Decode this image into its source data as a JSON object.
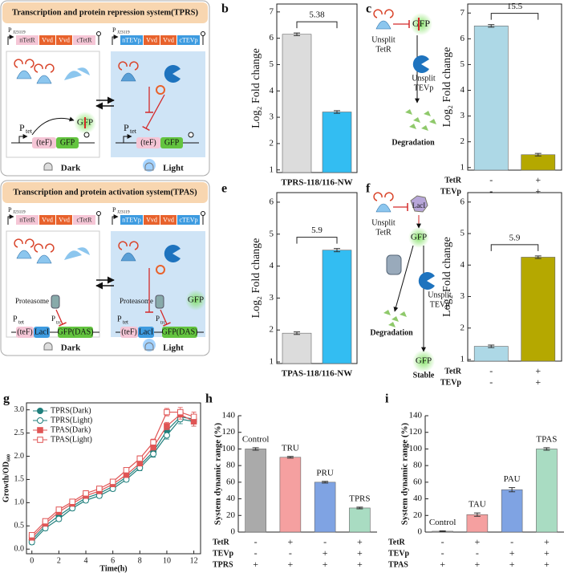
{
  "panel_labels": [
    "a",
    "b",
    "c",
    "d",
    "e",
    "f",
    "g",
    "h",
    "i"
  ],
  "diagram_a": {
    "title": "Transcription and protein repression system(TPRS)",
    "promoter": "P",
    "promoter_sub": "J23119",
    "left_parts": [
      "nTetR",
      "Vvd",
      "Vvd",
      "cTetR"
    ],
    "right_parts": [
      "nTEVp",
      "Vvd",
      "Vvd",
      "cTEVp"
    ],
    "ptet": "P",
    "ptet_sub": "tet",
    "tef": "(teF)",
    "gfp": "GFP",
    "reporter": "GFP",
    "dark": "Dark",
    "light": "Light"
  },
  "diagram_c": {
    "tetr": [
      "Unsplit",
      "TetR"
    ],
    "gfp": "GFP",
    "tevp": [
      "Unsplit",
      "TEVp"
    ],
    "result": "Degradation"
  },
  "diagram_d": {
    "title": "Transcription and protein activation system(TPAS)",
    "promoter": "P",
    "promoter_sub": "J23119",
    "left_parts": [
      "nTetR",
      "Vvd",
      "Vvd",
      "cTetR"
    ],
    "right_parts": [
      "nTEVp",
      "Vvd",
      "Vvd",
      "cTEVp"
    ],
    "ptet": "P",
    "ptet_sub": "tet",
    "ptrc": "P",
    "ptrc_sub": "trc",
    "tef": "(teF)",
    "laci": "LacI",
    "gfp_das": "GFP(DAS)",
    "proteasome": "Proteasome",
    "gfp": "GFP",
    "dark": "Dark",
    "light": "Light"
  },
  "diagram_f": {
    "tetr": [
      "Unsplit",
      "TetR"
    ],
    "laci": "LacI",
    "gfp": "GFP",
    "tevp": [
      "Unsplit",
      "TEVp"
    ],
    "degradation": "Degradation",
    "stable_gfp": "GFP",
    "stable": "Stable"
  },
  "chart_data": [
    {
      "type": "bar",
      "ylabel": "Log₂ Fold change",
      "xlabel": "TPRS-118/116-NW",
      "categories": [
        null,
        null
      ],
      "values": [
        6.15,
        3.2
      ],
      "errors": [
        0.05,
        0.05
      ],
      "colors": [
        "#dcdcdc",
        "#33bdf2"
      ],
      "ylim": [
        0.9,
        7.3
      ],
      "yticks": [
        1,
        2,
        3,
        4,
        5,
        6,
        7
      ],
      "annotation": "5.38",
      "frame": "box"
    },
    {
      "type": "bar",
      "ylabel": "Log₂ Fold change",
      "categories": [
        null,
        null
      ],
      "values": [
        6.5,
        1.5
      ],
      "errors": [
        0.05,
        0.05
      ],
      "colors": [
        "#add8e6",
        "#b5a800"
      ],
      "ylim": [
        0.9,
        7.35
      ],
      "yticks": [
        1,
        2,
        3,
        4,
        5,
        6,
        7
      ],
      "annotation": "15.5",
      "frame": "box",
      "rows": [
        {
          "name": "TetR",
          "values": [
            "-",
            "+"
          ]
        },
        {
          "name": "TEVp",
          "values": [
            "-",
            "+"
          ]
        }
      ]
    },
    {
      "type": "bar",
      "ylabel": "Log₂ Fold change",
      "xlabel": "TPAS-118/116-NW",
      "categories": [
        null,
        null
      ],
      "values": [
        1.9,
        4.5
      ],
      "errors": [
        0.04,
        0.05
      ],
      "colors": [
        "#dcdcdc",
        "#33bdf2"
      ],
      "ylim": [
        0.95,
        6.3
      ],
      "yticks": [
        1,
        2,
        3,
        4,
        5,
        6
      ],
      "annotation": "5.9",
      "frame": "box"
    },
    {
      "type": "bar",
      "ylabel": "Log₂ Fold change",
      "categories": [
        null,
        null
      ],
      "values": [
        1.42,
        4.25
      ],
      "errors": [
        0.04,
        0.04
      ],
      "colors": [
        "#add8e6",
        "#b5a800"
      ],
      "ylim": [
        0.95,
        6.3
      ],
      "yticks": [
        1,
        2,
        3,
        4,
        5,
        6
      ],
      "annotation": "5.9",
      "frame": "box",
      "rows": [
        {
          "name": "TetR",
          "values": [
            "-",
            "+"
          ]
        },
        {
          "name": "TEVp",
          "values": [
            "-",
            "+"
          ]
        }
      ]
    },
    {
      "type": "line",
      "xlabel": "Time(h)",
      "ylabel": "Growth/OD₆₀₀",
      "legend": "upper left",
      "x": [
        0,
        1,
        2,
        3,
        4,
        5,
        6,
        7,
        8,
        9,
        10,
        11,
        12
      ],
      "series": [
        {
          "name": "TPRS(Dark)",
          "color": "#1f7f7c",
          "marker": "circle",
          "filled": true,
          "values": [
            0.2,
            0.5,
            0.72,
            0.92,
            1.1,
            1.2,
            1.35,
            1.55,
            1.8,
            2.1,
            2.55,
            2.85,
            2.8
          ],
          "errors": [
            0.05,
            0.05,
            0.05,
            0.05,
            0.05,
            0.05,
            0.05,
            0.05,
            0.06,
            0.07,
            0.08,
            0.1,
            0.1
          ]
        },
        {
          "name": "TPRS(Light)",
          "color": "#1f7f7c",
          "marker": "circle",
          "filled": false,
          "values": [
            0.15,
            0.45,
            0.65,
            0.88,
            1.05,
            1.15,
            1.3,
            1.5,
            1.75,
            2.05,
            2.45,
            2.8,
            2.75
          ],
          "errors": [
            0.05,
            0.05,
            0.05,
            0.05,
            0.05,
            0.05,
            0.05,
            0.05,
            0.06,
            0.07,
            0.08,
            0.1,
            0.1
          ]
        },
        {
          "name": "TPAS(Dark)",
          "color": "#e05555",
          "marker": "square",
          "filled": true,
          "values": [
            0.25,
            0.55,
            0.8,
            0.98,
            1.15,
            1.25,
            1.4,
            1.6,
            1.85,
            2.2,
            2.65,
            2.9,
            2.75
          ],
          "errors": [
            0.05,
            0.05,
            0.05,
            0.05,
            0.05,
            0.05,
            0.05,
            0.05,
            0.06,
            0.07,
            0.08,
            0.1,
            0.1
          ]
        },
        {
          "name": "TPAS(Light)",
          "color": "#e05555",
          "marker": "square",
          "filled": false,
          "values": [
            0.3,
            0.6,
            0.85,
            1.02,
            1.2,
            1.3,
            1.45,
            1.7,
            1.95,
            2.3,
            2.95,
            2.95,
            2.85
          ],
          "errors": [
            0.05,
            0.05,
            0.05,
            0.05,
            0.05,
            0.05,
            0.05,
            0.05,
            0.06,
            0.07,
            0.08,
            0.1,
            0.1
          ]
        }
      ],
      "xlim": [
        -0.4,
        12.5
      ],
      "xticks": [
        0,
        2,
        4,
        6,
        8,
        10,
        12
      ],
      "ylim": [
        -0.1,
        3.15
      ],
      "yticks": [
        {
          "value": 0,
          "label": "0.0"
        },
        {
          "value": 0.5,
          "label": "0.5"
        },
        {
          "value": 1,
          "label": "1.0"
        },
        {
          "value": 1.5,
          "label": "1.5"
        },
        {
          "value": 2,
          "label": "2.0"
        },
        {
          "value": 2.5,
          "label": "2.5"
        },
        {
          "value": 3,
          "label": "3.0"
        }
      ]
    },
    {
      "type": "bar",
      "ylabel": "System dynamic range (%)",
      "categories": [
        "Control",
        "TRU",
        "PRU",
        "TPRS"
      ],
      "values": [
        100,
        90,
        60,
        29
      ],
      "errors": [
        1.5,
        1,
        1,
        1
      ],
      "colors": [
        "#aaaaaa",
        "#f5a0a0",
        "#7fa3e3",
        "#a9dcc2"
      ],
      "ylim": [
        0,
        140
      ],
      "yticks": [
        0,
        20,
        40,
        60,
        80,
        100,
        120,
        140
      ],
      "frame": "axes",
      "rows": [
        {
          "name": "TetR",
          "values": [
            "-",
            "+",
            "-",
            "+"
          ]
        },
        {
          "name": "TEVp",
          "values": [
            "-",
            "-",
            "+",
            "+"
          ]
        },
        {
          "name": "TPRS",
          "values": [
            "+",
            "+",
            "+",
            "+"
          ]
        }
      ]
    },
    {
      "type": "bar",
      "ylabel": "System dynamic range (%)",
      "categories": [
        "Control",
        "TAU",
        "PAU",
        "TPAS"
      ],
      "values": [
        1,
        21,
        51,
        100
      ],
      "errors": [
        0.5,
        2,
        2.5,
        1.5
      ],
      "colors": [
        "#aaaaaa",
        "#f5a0a0",
        "#7fa3e3",
        "#a9dcc2"
      ],
      "ylim": [
        0,
        140
      ],
      "yticks": [
        0,
        20,
        40,
        60,
        80,
        100,
        120,
        140
      ],
      "frame": "axes",
      "rows": [
        {
          "name": "TetR",
          "values": [
            "-",
            "+",
            "-",
            "+"
          ]
        },
        {
          "name": "TEVp",
          "values": [
            "-",
            "-",
            "+",
            "+"
          ]
        },
        {
          "name": "TPAS",
          "values": [
            "+",
            "+",
            "+",
            "+"
          ]
        }
      ]
    }
  ]
}
